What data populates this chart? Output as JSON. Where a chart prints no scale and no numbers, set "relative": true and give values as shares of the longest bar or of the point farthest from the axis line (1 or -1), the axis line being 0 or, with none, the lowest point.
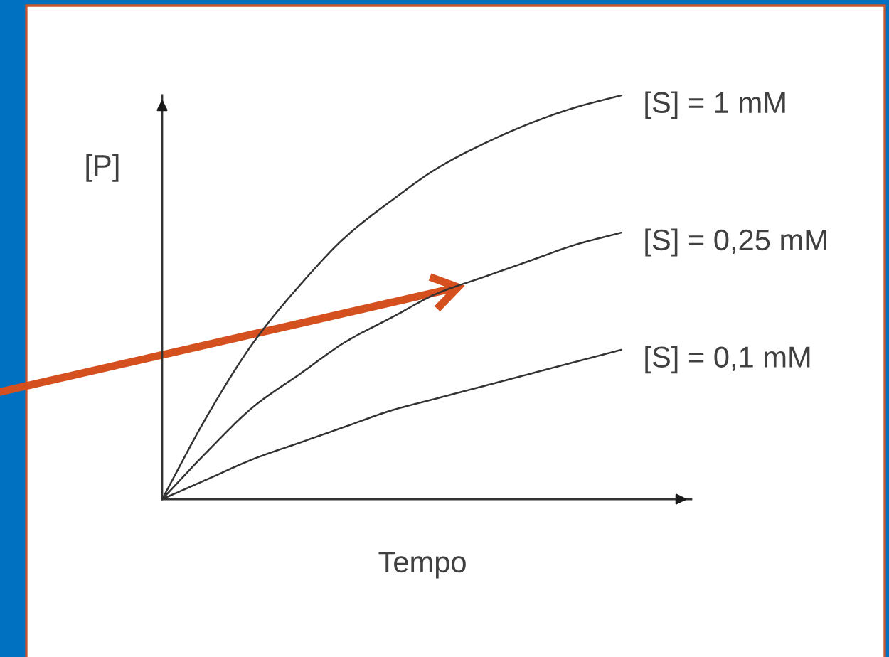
{
  "chart_data": {
    "type": "line",
    "relative": true,
    "xlabel": "Tempo",
    "ylabel": "[P]",
    "categories": [
      null,
      null,
      null,
      null,
      null,
      null,
      null,
      null,
      null,
      null,
      null
    ],
    "series": [
      {
        "name": "[S] = 1 mM",
        "color": "#333333",
        "values": [
          0,
          0.21,
          0.39,
          0.53,
          0.65,
          0.74,
          0.82,
          0.88,
          0.93,
          0.97,
          1
        ]
      },
      {
        "name": "[S] = 0,25 mM",
        "color": "#333333",
        "values": [
          0,
          0.12,
          0.23,
          0.31,
          0.39,
          0.45,
          0.51,
          0.55,
          0.59,
          0.63,
          0.66
        ]
      },
      {
        "name": "[S] = 0,1 mM",
        "color": "#333333",
        "values": [
          0,
          0.05,
          0.1,
          0.14,
          0.18,
          0.22,
          0.25,
          0.28,
          0.31,
          0.34,
          0.37
        ]
      }
    ]
  }
}
